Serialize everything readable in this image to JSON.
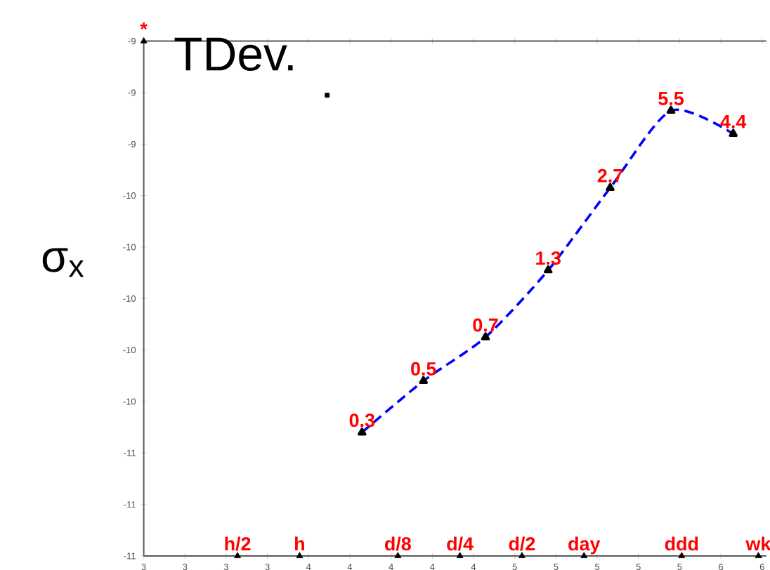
{
  "chart_data": {
    "type": "line",
    "title": "TDev.",
    "ylabel": "σ$_{x}$",
    "xlim": [
      2.8,
      5.82
    ],
    "ylim": [
      -11,
      -9
    ],
    "xticks": [
      {
        "value": 2.8,
        "label": "3"
      },
      {
        "value": 3.0,
        "label": "3"
      },
      {
        "value": 3.2,
        "label": "3"
      },
      {
        "value": 3.4,
        "label": "3"
      },
      {
        "value": 3.6,
        "label": "4"
      },
      {
        "value": 3.8,
        "label": "4"
      },
      {
        "value": 4.0,
        "label": "4"
      },
      {
        "value": 4.2,
        "label": "4"
      },
      {
        "value": 4.4,
        "label": "4"
      },
      {
        "value": 4.6,
        "label": "5"
      },
      {
        "value": 4.8,
        "label": "5"
      },
      {
        "value": 5.0,
        "label": "5"
      },
      {
        "value": 5.2,
        "label": "5"
      },
      {
        "value": 5.4,
        "label": "5"
      },
      {
        "value": 5.6,
        "label": "6"
      },
      {
        "value": 5.8,
        "label": "6"
      }
    ],
    "yticks": [
      {
        "value": -11,
        "label": "-11"
      },
      {
        "value": -10.8,
        "label": "-11"
      },
      {
        "value": -10.6,
        "label": "-11"
      },
      {
        "value": -10.4,
        "label": "-10"
      },
      {
        "value": -10.2,
        "label": "-10"
      },
      {
        "value": -10,
        "label": "-10"
      },
      {
        "value": -9.8,
        "label": "-10"
      },
      {
        "value": -9.6,
        "label": "-10"
      },
      {
        "value": -9.4,
        "label": "-9"
      },
      {
        "value": -9.2,
        "label": "-9"
      },
      {
        "value": -9,
        "label": "-9"
      }
    ],
    "series": [
      {
        "type": "line",
        "color": "#0000ff",
        "marker": "triangle",
        "line_style": "dashed",
        "x": [
          3.859,
          4.157,
          4.458,
          4.762,
          5.063,
          5.358,
          5.66
        ],
        "values": [
          -10.52,
          -10.32,
          -10.15,
          -9.89,
          -9.57,
          -9.27,
          -9.36
        ]
      },
      {
        "type": "scatter",
        "color": "#000000",
        "marker": "triangle",
        "x": [
          3.255,
          3.556,
          4.033,
          4.334,
          4.635,
          4.936,
          5.41,
          5.782
        ],
        "values": [
          -11,
          -11,
          -11,
          -11,
          -11,
          -11,
          -11,
          -11
        ]
      },
      {
        "type": "scatter",
        "color": "#000000",
        "marker": "triangle",
        "x": [
          2.8
        ],
        "values": [
          -9
        ]
      },
      {
        "type": "scatter",
        "color": "#000000",
        "marker": "square",
        "x": [
          3.69
        ],
        "values": [
          -9.21
        ]
      }
    ],
    "annotations": [
      {
        "text": "0.3",
        "x": 3.859,
        "y": -10.52
      },
      {
        "text": "0.5",
        "x": 4.157,
        "y": -10.32
      },
      {
        "text": "0.7",
        "x": 4.458,
        "y": -10.15
      },
      {
        "text": "1.3",
        "x": 4.762,
        "y": -9.89
      },
      {
        "text": "2.7",
        "x": 5.063,
        "y": -9.57
      },
      {
        "text": "5.5",
        "x": 5.358,
        "y": -9.27
      },
      {
        "text": "4.4",
        "x": 5.66,
        "y": -9.36
      },
      {
        "text": "h/2",
        "x": 3.255,
        "y": -11
      },
      {
        "text": "h",
        "x": 3.556,
        "y": -11
      },
      {
        "text": "d/8",
        "x": 4.033,
        "y": -11
      },
      {
        "text": "d/4",
        "x": 4.334,
        "y": -11
      },
      {
        "text": "d/2",
        "x": 4.635,
        "y": -11
      },
      {
        "text": "day",
        "x": 4.936,
        "y": -11
      },
      {
        "text": "ddd",
        "x": 5.41,
        "y": -11
      },
      {
        "text": "wk",
        "x": 5.782,
        "y": -11
      },
      {
        "text": "*",
        "x": 2.8,
        "y": -9
      }
    ]
  }
}
